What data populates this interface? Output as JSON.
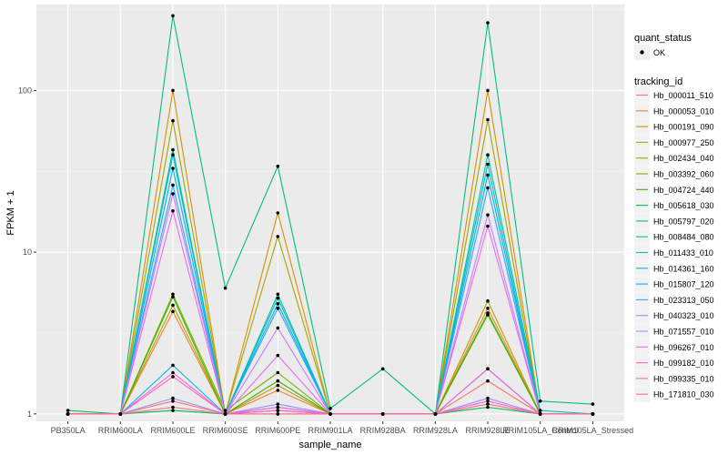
{
  "chart_data": {
    "type": "line",
    "xlabel": "sample_name",
    "ylabel": "FPKM + 1",
    "yscale": "log10",
    "ylim": [
      0.9,
      340
    ],
    "y_ticks": [
      1,
      10,
      100
    ],
    "y_tick_labels": [
      "1",
      "10",
      "100"
    ],
    "categories": [
      "PB350LA",
      "RRIM600LA",
      "RRIM600LE",
      "RRIM600SE",
      "RRIM600PE",
      "RRIM901LA",
      "RRIM928BA",
      "RRIM928LA",
      "RRIM928LE",
      "RRIM105LA_Control",
      "RRIM105LA_Stressed"
    ],
    "grid": true,
    "legend_position": "right",
    "point_legend": {
      "title": "quant_status",
      "label": "OK"
    },
    "color_legend_title": "tracking_id",
    "series": [
      {
        "name": "Hb_000011_510",
        "color": "#F8766D",
        "values": [
          1.0,
          1.0,
          1.2,
          1.0,
          1.05,
          1.0,
          1.0,
          1.0,
          1.6,
          1.0,
          1.0
        ]
      },
      {
        "name": "Hb_000053_010",
        "color": "#EA8331",
        "values": [
          1.0,
          1.0,
          4.3,
          1.0,
          1.4,
          1.0,
          1.0,
          1.0,
          4.5,
          1.0,
          1.0
        ]
      },
      {
        "name": "Hb_000191_090",
        "color": "#D89000",
        "values": [
          1.0,
          1.0,
          100,
          1.0,
          17.5,
          1.0,
          1.0,
          1.0,
          100,
          1.0,
          1.0
        ]
      },
      {
        "name": "Hb_000977_250",
        "color": "#C09B00",
        "values": [
          1.0,
          1.0,
          4.7,
          1.0,
          1.5,
          1.0,
          1.0,
          1.0,
          5.0,
          1.0,
          1.0
        ]
      },
      {
        "name": "Hb_002434_040",
        "color": "#A3A500",
        "values": [
          1.0,
          1.0,
          65,
          1.0,
          12.5,
          1.0,
          1.0,
          1.0,
          66,
          1.0,
          1.0
        ]
      },
      {
        "name": "Hb_003392_060",
        "color": "#7CAE00",
        "values": [
          1.0,
          1.0,
          5.5,
          1.05,
          1.8,
          1.0,
          1.0,
          1.0,
          4.2,
          1.0,
          1.0
        ]
      },
      {
        "name": "Hb_004724_440",
        "color": "#39B600",
        "values": [
          1.0,
          1.0,
          5.3,
          1.0,
          1.6,
          1.0,
          1.0,
          1.0,
          4.1,
          1.0,
          1.0
        ]
      },
      {
        "name": "Hb_005618_030",
        "color": "#00BB4E",
        "values": [
          1.05,
          1.0,
          1.05,
          1.0,
          1.0,
          1.0,
          1.0,
          1.0,
          1.1,
          1.0,
          1.0
        ]
      },
      {
        "name": "Hb_005797_020",
        "color": "#00BF7D",
        "values": [
          1.0,
          1.0,
          290,
          6.0,
          34,
          1.08,
          1.9,
          1.0,
          262,
          1.2,
          1.15
        ]
      },
      {
        "name": "Hb_008484_080",
        "color": "#00C1A3",
        "values": [
          1.0,
          1.0,
          43,
          1.0,
          5.5,
          1.0,
          1.0,
          1.0,
          40,
          1.05,
          1.0
        ]
      },
      {
        "name": "Hb_011433_010",
        "color": "#00BFC4",
        "values": [
          1.0,
          1.0,
          40,
          1.0,
          5.2,
          1.0,
          1.0,
          1.0,
          35,
          1.0,
          1.0
        ]
      },
      {
        "name": "Hb_014361_160",
        "color": "#00BAE0",
        "values": [
          1.0,
          1.0,
          2.0,
          1.0,
          1.1,
          1.0,
          1.0,
          1.0,
          1.9,
          1.0,
          1.0
        ]
      },
      {
        "name": "Hb_015807_120",
        "color": "#00B0F6",
        "values": [
          1.0,
          1.0,
          33,
          1.0,
          4.8,
          1.0,
          1.0,
          1.0,
          30,
          1.0,
          1.0
        ]
      },
      {
        "name": "Hb_023313_050",
        "color": "#35A2FF",
        "values": [
          1.0,
          1.0,
          26,
          1.0,
          4.5,
          1.0,
          1.0,
          1.0,
          25,
          1.0,
          1.0
        ]
      },
      {
        "name": "Hb_040323_010",
        "color": "#9590FF",
        "values": [
          1.0,
          1.0,
          1.25,
          1.0,
          1.15,
          1.0,
          1.0,
          1.0,
          1.25,
          1.0,
          1.0
        ]
      },
      {
        "name": "Hb_071557_010",
        "color": "#C77CFF",
        "values": [
          1.0,
          1.0,
          23,
          1.0,
          3.4,
          1.0,
          1.0,
          1.0,
          17,
          1.0,
          1.0
        ]
      },
      {
        "name": "Hb_096267_010",
        "color": "#E76BF3",
        "values": [
          1.0,
          1.0,
          18,
          1.0,
          2.3,
          1.0,
          1.0,
          1.0,
          14.5,
          1.0,
          1.0
        ]
      },
      {
        "name": "Hb_099182_010",
        "color": "#FA62DB",
        "values": [
          1.0,
          1.0,
          1.8,
          1.0,
          1.1,
          1.0,
          1.0,
          1.0,
          1.9,
          1.0,
          1.0
        ]
      },
      {
        "name": "Hb_099335_010",
        "color": "#FF62BC",
        "values": [
          1.0,
          1.0,
          1.7,
          1.0,
          1.05,
          1.0,
          1.0,
          1.0,
          1.2,
          1.0,
          1.0
        ]
      },
      {
        "name": "Hb_171810_030",
        "color": "#FF6C91",
        "values": [
          1.0,
          1.0,
          1.1,
          1.0,
          1.0,
          1.0,
          1.0,
          1.0,
          1.15,
          1.0,
          1.0
        ]
      }
    ]
  }
}
